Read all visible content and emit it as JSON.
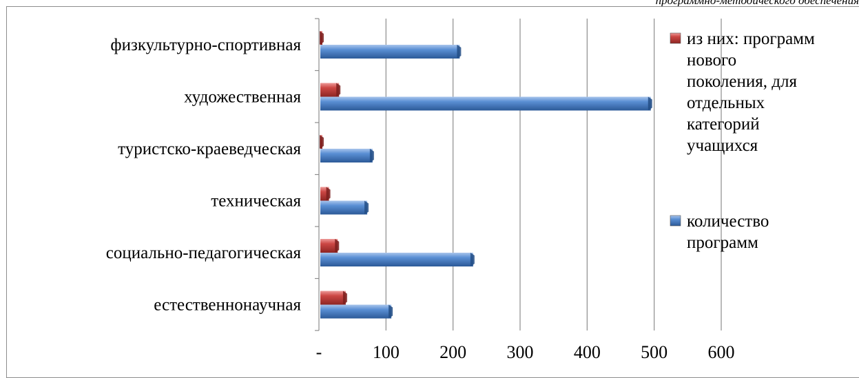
{
  "caption": "программно-методического обеспечения",
  "colors": {
    "series_new": "#c0393b",
    "series_total": "#4a7ebb",
    "grid": "#8c8c8c"
  },
  "chart_data": {
    "type": "bar",
    "orientation": "horizontal",
    "categories": [
      "физкультурно-спортивная",
      "художественная",
      "туристско-краеведческая",
      "техническая",
      "социально-педагогическая",
      "естественнонаучная"
    ],
    "series": [
      {
        "name": "из них: программ нового поколения, для отдельных категорий учащихся",
        "legend_lines": [
          "из них: программ",
          "нового",
          "поколения, для",
          "отдельных",
          "категорий",
          "учащихся"
        ],
        "color": "#c0393b",
        "values": [
          2,
          30,
          5,
          15,
          28,
          40
        ]
      },
      {
        "name": "количество программ",
        "legend_lines": [
          "количество",
          "программ"
        ],
        "color": "#4a7ebb",
        "values": [
          210,
          495,
          80,
          72,
          230,
          108
        ]
      }
    ],
    "xlim": [
      0,
      600
    ],
    "xticks": [
      0,
      100,
      200,
      300,
      400,
      500,
      600
    ],
    "xtick_labels": [
      "-",
      "100",
      "200",
      "300",
      "400",
      "500",
      "600"
    ],
    "grid": true,
    "legend_position": "right"
  }
}
